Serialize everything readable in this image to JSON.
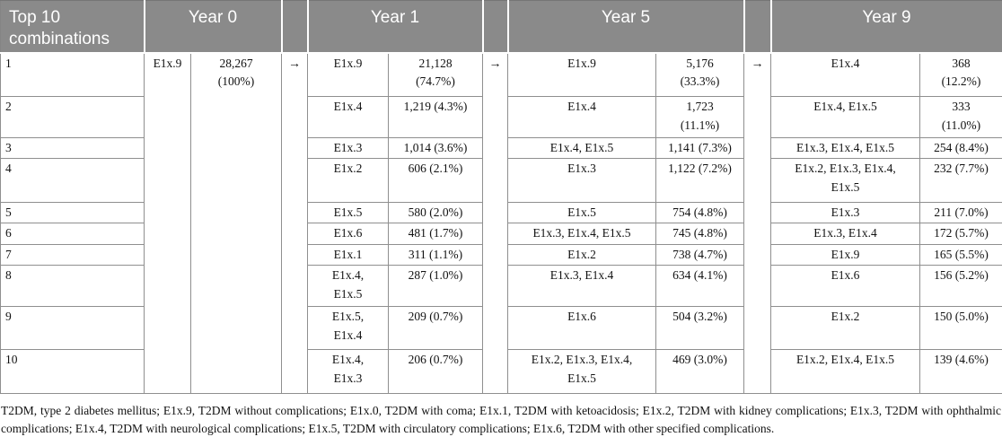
{
  "header": {
    "rank_col": "Top 10 combinations",
    "year_cols": [
      "Year 0",
      "Year 1",
      "Year 5",
      "Year 9"
    ],
    "arrow": "→"
  },
  "year0": {
    "code": "E1x.9",
    "value": "28,267\n(100%)"
  },
  "rows": [
    {
      "rank": "1",
      "y1_code": "E1x.9",
      "y1_value": "21,128\n(74.7%)",
      "y5_code": "E1x.9",
      "y5_value": "5,176\n(33.3%)",
      "y9_code": "E1x.4",
      "y9_value": "368\n(12.2%)"
    },
    {
      "rank": "2",
      "y1_code": "E1x.4",
      "y1_value": "1,219 (4.3%)",
      "y5_code": "E1x.4",
      "y5_value": "1,723\n(11.1%)",
      "y9_code": "E1x.4, E1x.5",
      "y9_value": "333\n(11.0%)"
    },
    {
      "rank": "3",
      "y1_code": "E1x.3",
      "y1_value": "1,014 (3.6%)",
      "y5_code": "E1x.4, E1x.5",
      "y5_value": "1,141 (7.3%)",
      "y9_code": "E1x.3, E1x.4, E1x.5",
      "y9_value": "254 (8.4%)"
    },
    {
      "rank": "4",
      "y1_code": "E1x.2",
      "y1_value": "606 (2.1%)",
      "y5_code": "E1x.3",
      "y5_value": "1,122 (7.2%)",
      "y9_code": "E1x.2, E1x.3, E1x.4,\nE1x.5",
      "y9_value": "232 (7.7%)"
    },
    {
      "rank": "5",
      "y1_code": "E1x.5",
      "y1_value": "580 (2.0%)",
      "y5_code": "E1x.5",
      "y5_value": "754 (4.8%)",
      "y9_code": "E1x.3",
      "y9_value": "211 (7.0%)"
    },
    {
      "rank": "6",
      "y1_code": "E1x.6",
      "y1_value": "481 (1.7%)",
      "y5_code": "E1x.3, E1x.4, E1x.5",
      "y5_value": "745 (4.8%)",
      "y9_code": "E1x.3, E1x.4",
      "y9_value": "172 (5.7%)"
    },
    {
      "rank": "7",
      "y1_code": "E1x.1",
      "y1_value": "311 (1.1%)",
      "y5_code": "E1x.2",
      "y5_value": "738 (4.7%)",
      "y9_code": "E1x.9",
      "y9_value": "165 (5.5%)"
    },
    {
      "rank": "8",
      "y1_code": "E1x.4,\nE1x.5",
      "y1_value": "287 (1.0%)",
      "y5_code": "E1x.3, E1x.4",
      "y5_value": "634 (4.1%)",
      "y9_code": "E1x.6",
      "y9_value": "156 (5.2%)"
    },
    {
      "rank": "9",
      "y1_code": "E1x.5,\nE1x.4",
      "y1_value": "209 (0.7%)",
      "y5_code": "E1x.6",
      "y5_value": "504 (3.2%)",
      "y9_code": "E1x.2",
      "y9_value": "150 (5.0%)"
    },
    {
      "rank": "10",
      "y1_code": "E1x.4,\nE1x.3",
      "y1_value": "206 (0.7%)",
      "y5_code": "E1x.2, E1x.3, E1x.4,\nE1x.5",
      "y5_value": "469 (3.0%)",
      "y9_code": "E1x.2, E1x.4, E1x.5",
      "y9_value": "139 (4.6%)"
    }
  ],
  "footnote": "T2DM, type 2 diabetes mellitus; E1x.9, T2DM without complications; E1x.0, T2DM with coma; E1x.1, T2DM with ketoacidosis; E1x.2, T2DM with kidney complications; E1x.3, T2DM with ophthalmic complications; E1x.4, T2DM with neurological complications; E1x.5, T2DM with circulatory complications; E1x.6, T2DM with other specified complications.",
  "colors": {
    "header_bg": "#8a8a8a",
    "header_text": "#ffffff",
    "grid_line": "#8f8f8f",
    "body_text": "#111111"
  }
}
